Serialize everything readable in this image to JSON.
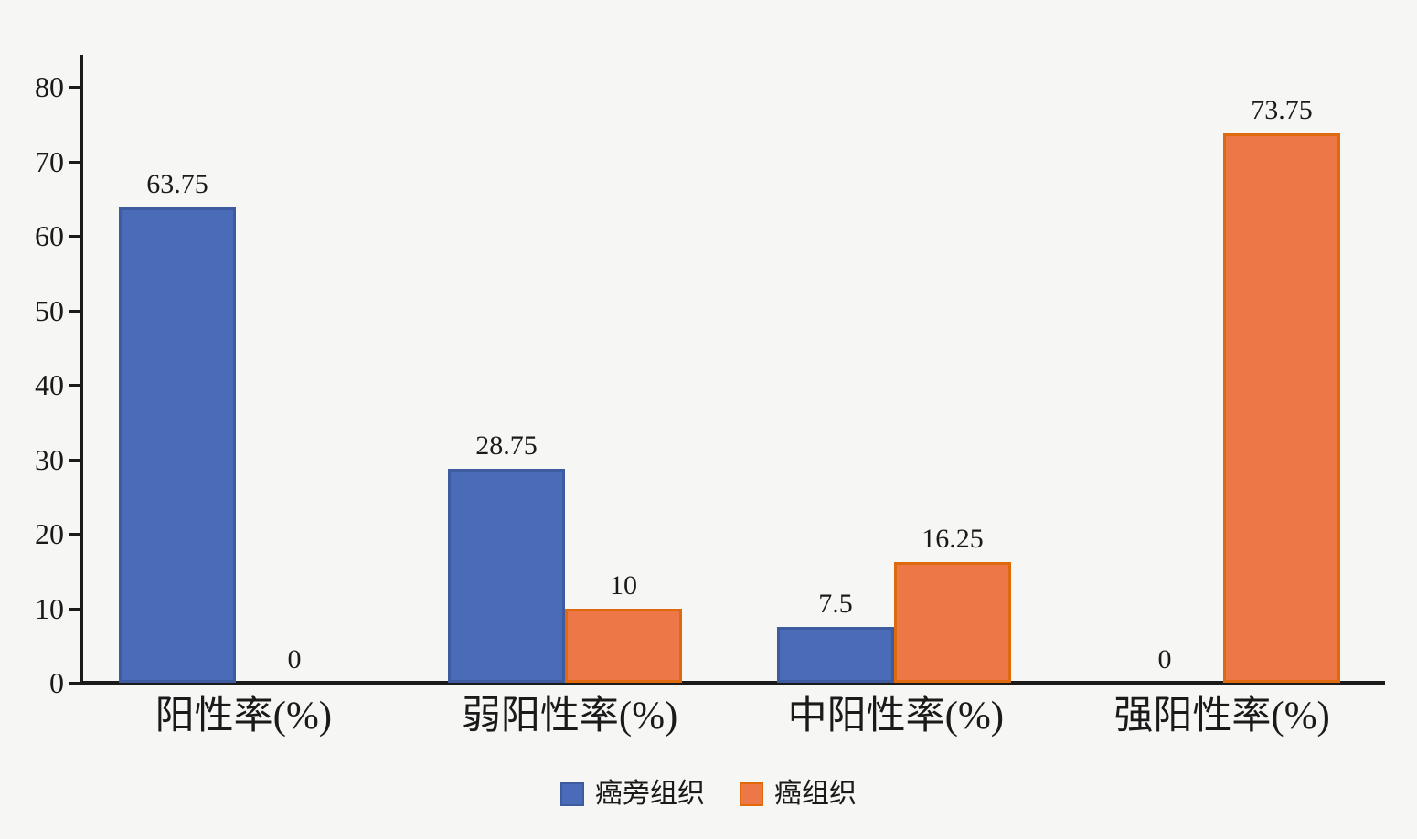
{
  "chart_data": {
    "type": "bar",
    "title": "",
    "xlabel": "",
    "ylabel": "",
    "categories": [
      "阳性率(%)",
      "弱阳性率(%)",
      "中阳性率(%)",
      "强阳性率(%)"
    ],
    "series": [
      {
        "name": "癌旁组织",
        "values": [
          63.75,
          28.75,
          7.5,
          0
        ],
        "value_labels": [
          "63.75",
          "",
          "7.5",
          "0"
        ],
        "shown_labels": [
          "63.75",
          "28.75",
          "7.5",
          "0"
        ],
        "fill_color": "#4a6cb8",
        "border_color": "#3f5ba0"
      },
      {
        "name": "癌组织",
        "values": [
          0,
          10,
          16.25,
          73.75
        ],
        "shown_labels": [
          "0",
          "10",
          "16.25",
          "73.75"
        ],
        "fill_color": "#ee7747",
        "border_color": "#df6a0e"
      }
    ],
    "y_ticks": [
      "0",
      "10",
      "20",
      "30",
      "40",
      "50",
      "60",
      "70",
      "80"
    ],
    "ylim": [
      0,
      80
    ],
    "grid": false,
    "legend_position": "bottom",
    "colors": {
      "background": "#f6f6f4",
      "axis": "#1a1a1a",
      "text": "#1a1a1a"
    }
  }
}
